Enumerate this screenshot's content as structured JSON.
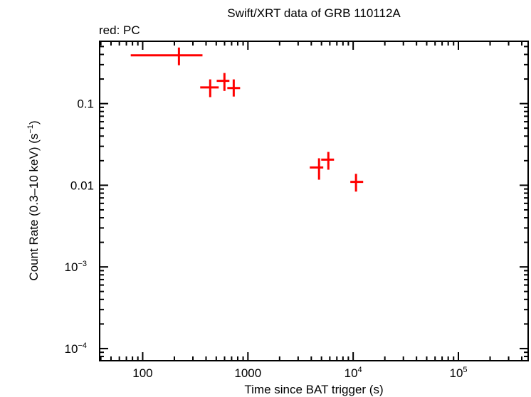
{
  "chart_data": {
    "type": "scatter",
    "title": "Swift/XRT data of GRB 110112A",
    "subtitle": "red: PC",
    "xlabel": "Time since BAT trigger (s)",
    "ylabel": "Count Rate (0.3–10 keV) (s",
    "ylabel_sup": "−1",
    "ylabel_end": ")",
    "xscale": "log",
    "yscale": "log",
    "xlim": [
      39,
      460000
    ],
    "ylim": [
      7.1e-05,
      0.58
    ],
    "grid": false,
    "xticks": [
      {
        "value": 100,
        "base": "100",
        "exp": ""
      },
      {
        "value": 1000,
        "base": "1000",
        "exp": ""
      },
      {
        "value": 10000,
        "base": "10",
        "exp": "4"
      },
      {
        "value": 100000,
        "base": "10",
        "exp": "5"
      }
    ],
    "yticks": [
      {
        "value": 0.1,
        "base": "0.1",
        "exp": ""
      },
      {
        "value": 0.01,
        "base": "0.01",
        "exp": ""
      },
      {
        "value": 0.001,
        "base": "10",
        "exp": "−3"
      },
      {
        "value": 0.0001,
        "base": "10",
        "exp": "−4"
      }
    ],
    "series": [
      {
        "name": "PC",
        "color": "#ff0000",
        "points": [
          {
            "x": 221,
            "xlo": 77,
            "xhi": 370,
            "y": 0.39,
            "ylo": 0.295,
            "yhi": 0.486
          },
          {
            "x": 438,
            "xlo": 352,
            "xhi": 528,
            "y": 0.158,
            "ylo": 0.12,
            "yhi": 0.198
          },
          {
            "x": 598,
            "xlo": 505,
            "xhi": 667,
            "y": 0.19,
            "ylo": 0.143,
            "yhi": 0.237
          },
          {
            "x": 733,
            "xlo": 637,
            "xhi": 843,
            "y": 0.155,
            "ylo": 0.122,
            "yhi": 0.198
          },
          {
            "x": 4740,
            "xlo": 3870,
            "xhi": 5200,
            "y": 0.0165,
            "ylo": 0.0117,
            "yhi": 0.0214
          },
          {
            "x": 5810,
            "xlo": 4970,
            "xhi": 6580,
            "y": 0.0206,
            "ylo": 0.0155,
            "yhi": 0.0256
          },
          {
            "x": 10640,
            "xlo": 9400,
            "xhi": 12450,
            "y": 0.011,
            "ylo": 0.00836,
            "yhi": 0.0138
          }
        ]
      }
    ]
  }
}
